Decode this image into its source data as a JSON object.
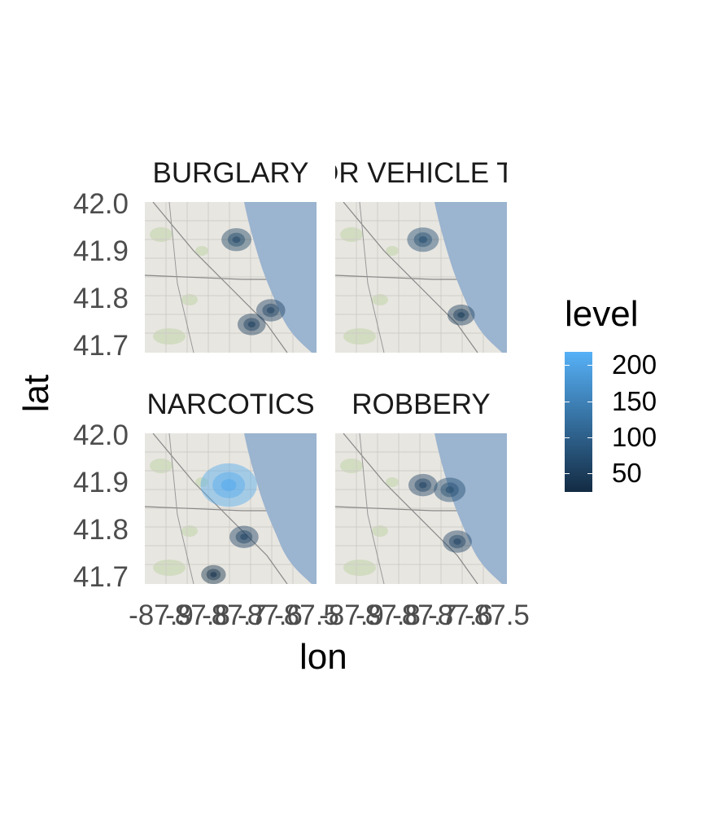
{
  "chart_data": {
    "type": "heatmap",
    "xlabel": "lon",
    "ylabel": "lat",
    "x_ticks": [
      "-87.9",
      "-87.8",
      "-87.7",
      "-87.6",
      "-87.5"
    ],
    "y_ticks": [
      "42.0",
      "41.9",
      "41.8",
      "41.7"
    ],
    "xlim": [
      -87.95,
      -87.5
    ],
    "ylim": [
      41.68,
      42.0
    ],
    "facets": [
      {
        "title": "BURGLARY",
        "hotspots": [
          {
            "lon": -87.71,
            "lat": 41.92,
            "level": 50
          },
          {
            "lon": -87.67,
            "lat": 41.74,
            "level": 40
          },
          {
            "lon": -87.62,
            "lat": 41.77,
            "level": 45
          }
        ]
      },
      {
        "title": "MOTOR VEHICLE THEFT",
        "hotspots": [
          {
            "lon": -87.72,
            "lat": 41.92,
            "level": 60
          },
          {
            "lon": -87.62,
            "lat": 41.76,
            "level": 35
          }
        ]
      },
      {
        "title": "NARCOTICS",
        "hotspots": [
          {
            "lon": -87.73,
            "lat": 41.89,
            "level": 200
          },
          {
            "lon": -87.69,
            "lat": 41.78,
            "level": 45
          },
          {
            "lon": -87.77,
            "lat": 41.7,
            "level": 20
          }
        ]
      },
      {
        "title": "ROBBERY",
        "hotspots": [
          {
            "lon": -87.72,
            "lat": 41.89,
            "level": 45
          },
          {
            "lon": -87.65,
            "lat": 41.88,
            "level": 60
          },
          {
            "lon": -87.63,
            "lat": 41.77,
            "level": 45
          }
        ]
      }
    ],
    "legend": {
      "title": "level",
      "breaks": [
        "200",
        "150",
        "100",
        "50"
      ],
      "low_color": "#132B43",
      "high_color": "#56B1F7",
      "placement": "right"
    }
  }
}
